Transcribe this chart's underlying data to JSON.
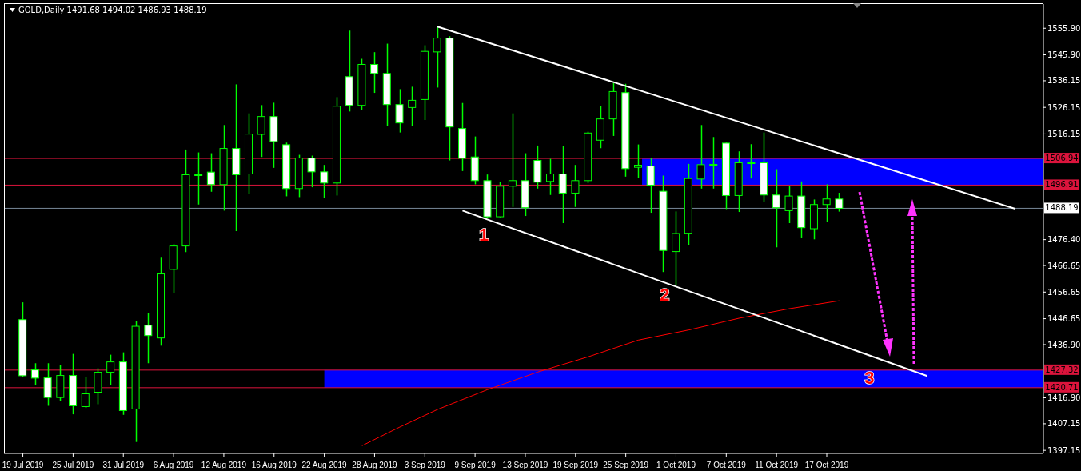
{
  "chart_data": {
    "type": "candlestick",
    "title": "GOLD,Daily 1491.68 1494.02 1486.93 1488.19",
    "categories": [
      "19 Jul 2019",
      null,
      null,
      null,
      "25 Jul 2019",
      null,
      null,
      null,
      "31 Jul 2019",
      null,
      null,
      null,
      "6 Aug 2019",
      null,
      null,
      null,
      "12 Aug 2019",
      null,
      null,
      null,
      "16 Aug 2019",
      null,
      null,
      null,
      "22 Aug 2019",
      null,
      null,
      null,
      "28 Aug 2019",
      null,
      null,
      null,
      "3 Sep 2019",
      null,
      null,
      null,
      "9 Sep 2019",
      null,
      null,
      null,
      "13 Sep 2019",
      null,
      null,
      null,
      "19 Sep 2019",
      null,
      null,
      null,
      "25 Sep 2019",
      null,
      null,
      null,
      "1 Oct 2019",
      null,
      null,
      null,
      "7 Oct 2019",
      null,
      null,
      null,
      "11 Oct 2019",
      null,
      null,
      null,
      "17 Oct 2019",
      null,
      null,
      null,
      null,
      null,
      null,
      null,
      null,
      null,
      null,
      null,
      null,
      null,
      null,
      null,
      null,
      null
    ],
    "ohlc": [
      [
        1446.3,
        1452.8,
        1424.6,
        1425.2
      ],
      [
        1427.4,
        1429.9,
        1421.8,
        1424.3
      ],
      [
        1424.4,
        1429.9,
        1413.9,
        1417.0
      ],
      [
        1417.0,
        1429.2,
        1415.8,
        1425.3
      ],
      [
        1425.3,
        1433.4,
        1410.7,
        1413.9
      ],
      [
        1413.6,
        1424.8,
        1413.1,
        1418.4
      ],
      [
        1419.0,
        1428.0,
        1414.5,
        1426.5
      ],
      [
        1426.5,
        1433.1,
        1421.8,
        1430.4
      ],
      [
        1430.4,
        1434.0,
        1410.5,
        1412.1
      ],
      [
        1412.7,
        1445.7,
        1400.3,
        1443.8
      ],
      [
        1444.2,
        1448.7,
        1429.9,
        1440.3
      ],
      [
        1439.4,
        1469.6,
        1436.5,
        1463.5
      ],
      [
        1465.2,
        1474.7,
        1456.2,
        1474.0
      ],
      [
        1474.0,
        1510.3,
        1471.7,
        1500.8
      ],
      [
        1500.8,
        1509.2,
        1489.6,
        1500.8
      ],
      [
        1501.8,
        1508.9,
        1494.4,
        1497.1
      ],
      [
        1497.1,
        1519.5,
        1487.3,
        1510.7
      ],
      [
        1510.7,
        1534.8,
        1479.6,
        1500.8
      ],
      [
        1501.1,
        1523.9,
        1493.7,
        1516.1
      ],
      [
        1516.0,
        1527.0,
        1507.5,
        1522.7
      ],
      [
        1522.7,
        1527.9,
        1503.4,
        1513.3
      ],
      [
        1512.1,
        1512.9,
        1492.7,
        1495.6
      ],
      [
        1495.6,
        1508.3,
        1492.4,
        1507.1
      ],
      [
        1507.1,
        1508.0,
        1496.1,
        1501.9
      ],
      [
        1501.9,
        1504.5,
        1492.2,
        1497.7
      ],
      [
        1497.7,
        1530.0,
        1493.0,
        1526.6
      ],
      [
        1537.7,
        1555.0,
        1524.6,
        1526.9
      ],
      [
        1526.9,
        1544.4,
        1525.3,
        1542.3
      ],
      [
        1542.3,
        1546.9,
        1531.6,
        1538.9
      ],
      [
        1538.9,
        1550.1,
        1519.3,
        1527.2
      ],
      [
        1527.2,
        1533.0,
        1516.7,
        1520.3
      ],
      [
        1526.1,
        1533.9,
        1519.1,
        1528.8
      ],
      [
        1529.1,
        1549.5,
        1521.4,
        1547.2
      ],
      [
        1547.0,
        1556.5,
        1533.6,
        1552.2
      ],
      [
        1552.2,
        1552.9,
        1506.2,
        1518.8
      ],
      [
        1518.2,
        1527.8,
        1502.2,
        1507.0
      ],
      [
        1507.5,
        1515.2,
        1497.2,
        1498.6
      ],
      [
        1498.6,
        1500.9,
        1484.5,
        1485.0
      ],
      [
        1485.0,
        1498.0,
        1484.8,
        1496.5
      ],
      [
        1496.5,
        1523.9,
        1488.7,
        1498.6
      ],
      [
        1498.6,
        1508.9,
        1485.3,
        1488.4
      ],
      [
        1506.2,
        1511.8,
        1495.6,
        1498.0
      ],
      [
        1498.3,
        1506.8,
        1493.2,
        1501.1
      ],
      [
        1501.1,
        1511.6,
        1482.6,
        1493.9
      ],
      [
        1493.9,
        1504.5,
        1488.7,
        1498.6
      ],
      [
        1498.6,
        1517.0,
        1497.7,
        1516.5
      ],
      [
        1513.8,
        1526.7,
        1510.8,
        1521.8
      ],
      [
        1521.8,
        1535.3,
        1515.4,
        1532.1
      ],
      [
        1531.7,
        1535.0,
        1500.1,
        1503.1
      ],
      [
        1503.6,
        1512.2,
        1499.7,
        1504.4
      ],
      [
        1504.1,
        1507.2,
        1486.5,
        1496.9
      ],
      [
        1494.6,
        1500.5,
        1464.2,
        1472.3
      ],
      [
        1471.9,
        1487.0,
        1459.1,
        1478.7
      ],
      [
        1478.8,
        1504.9,
        1474.3,
        1499.4
      ],
      [
        1499.2,
        1519.5,
        1495.6,
        1504.6
      ],
      [
        1504.7,
        1515.0,
        1495.6,
        1504.7
      ],
      [
        1512.7,
        1512.9,
        1487.9,
        1493.0
      ],
      [
        1493.0,
        1509.6,
        1486.8,
        1505.3
      ],
      [
        1505.3,
        1512.3,
        1499.4,
        1505.3
      ],
      [
        1505.3,
        1516.7,
        1490.7,
        1493.2
      ],
      [
        1493.2,
        1502.9,
        1473.5,
        1488.4
      ],
      [
        1487.3,
        1496.6,
        1482.6,
        1492.8
      ],
      [
        1492.8,
        1498.3,
        1476.9,
        1480.9
      ],
      [
        1480.5,
        1491.5,
        1476.5,
        1489.6
      ],
      [
        1489.6,
        1497.2,
        1483.1,
        1491.7
      ],
      [
        1491.68,
        1494.02,
        1486.93,
        1488.19
      ],
      null,
      null,
      null,
      null,
      null,
      null,
      null,
      null,
      null,
      null,
      null,
      null,
      null,
      null,
      null,
      null
    ],
    "series": [
      {
        "type": "line",
        "color": "#ff0000",
        "values": [
          null,
          null,
          null,
          null,
          null,
          null,
          null,
          null,
          null,
          null,
          null,
          null,
          null,
          null,
          null,
          null,
          null,
          null,
          null,
          null,
          null,
          null,
          null,
          null,
          null,
          null,
          null,
          1398.9,
          null,
          null,
          1405.9,
          null,
          null,
          1412.5,
          null,
          null,
          null,
          1420.0,
          null,
          null,
          null,
          1426.6,
          null,
          null,
          null,
          1432.3,
          null,
          null,
          null,
          1438.6,
          null,
          null,
          null,
          1442.4,
          null,
          null,
          null,
          1446.8,
          null,
          null,
          null,
          1450.4,
          null,
          null,
          null,
          1453.4,
          null,
          null,
          null,
          null,
          null,
          null,
          null,
          null,
          null,
          null,
          null,
          null,
          null,
          null,
          null,
          null
        ]
      },
      {
        "type": "line",
        "color": "#ffffff",
        "values": [
          null,
          null,
          null,
          null,
          null,
          null,
          null,
          null,
          null,
          null,
          null,
          null,
          null,
          null,
          null,
          null,
          null,
          null,
          null,
          null,
          null,
          null,
          null,
          null,
          null,
          null,
          null,
          null,
          null,
          null,
          null,
          null,
          null,
          1556.5,
          null,
          null,
          null,
          null,
          null,
          null,
          null,
          null,
          null,
          null,
          null,
          null,
          null,
          null,
          null,
          null,
          null,
          null,
          null,
          null,
          null,
          null,
          null,
          null,
          null,
          null,
          null,
          null,
          null,
          null,
          null,
          null,
          null,
          null,
          null,
          null,
          null,
          null,
          null,
          null,
          null,
          null,
          null,
          null,
          null,
          1488.0,
          null,
          null
        ]
      },
      {
        "type": "line",
        "color": "#ffffff",
        "values": [
          null,
          null,
          null,
          null,
          null,
          null,
          null,
          null,
          null,
          null,
          null,
          null,
          null,
          null,
          null,
          null,
          null,
          null,
          null,
          null,
          null,
          null,
          null,
          null,
          null,
          null,
          null,
          null,
          null,
          null,
          null,
          null,
          null,
          null,
          null,
          1487.3,
          null,
          null,
          null,
          null,
          null,
          null,
          null,
          null,
          null,
          null,
          null,
          null,
          null,
          null,
          null,
          null,
          null,
          null,
          null,
          null,
          null,
          null,
          null,
          null,
          null,
          null,
          null,
          null,
          null,
          null,
          null,
          null,
          null,
          null,
          null,
          null,
          1425.1,
          null,
          null,
          null,
          null,
          null,
          null,
          null,
          null,
          null
        ]
      }
    ],
    "ylim": [
      1396,
      1565
    ],
    "yticks": [
      {
        "value": 1555.9,
        "label": "1555.90"
      },
      {
        "value": 1545.9,
        "label": "1545.90"
      },
      {
        "value": 1536.15,
        "label": "1536.15"
      },
      {
        "value": 1526.15,
        "label": "1526.15"
      },
      {
        "value": 1516.15,
        "label": "1516.15"
      },
      {
        "value": 1476.4,
        "label": "1476.40"
      },
      {
        "value": 1466.65,
        "label": "1466.65"
      },
      {
        "value": 1456.65,
        "label": "1456.65"
      },
      {
        "value": 1446.65,
        "label": "1446.65"
      },
      {
        "value": 1436.9,
        "label": "1436.90"
      },
      {
        "value": 1416.9,
        "label": "1416.90"
      },
      {
        "value": 1407.15,
        "label": "1407.15"
      },
      {
        "value": 1397.15,
        "label": "1397.15"
      }
    ],
    "ref_lines": [
      {
        "axis": "y",
        "value": 1506.94,
        "label": "1506.94",
        "color": "#dc143c"
      },
      {
        "axis": "y",
        "value": 1496.91,
        "label": "1496.91",
        "color": "#dc143c"
      },
      {
        "axis": "y",
        "value": 1488.19,
        "label": "1488.19",
        "color": "#778899"
      },
      {
        "axis": "y",
        "value": 1427.32,
        "label": "1427.32",
        "color": "#dc143c"
      },
      {
        "axis": "y",
        "value": 1420.71,
        "label": "1420.71",
        "color": "#dc143c"
      }
    ],
    "bands": [
      {
        "axis": "y",
        "from": 1496.91,
        "to": 1506.94,
        "color": "#0000ff"
      },
      {
        "axis": "y",
        "from": 1420.71,
        "to": 1427.32,
        "color": "#0000ff"
      }
    ],
    "annotations": [
      "1",
      "2",
      "3"
    ]
  }
}
